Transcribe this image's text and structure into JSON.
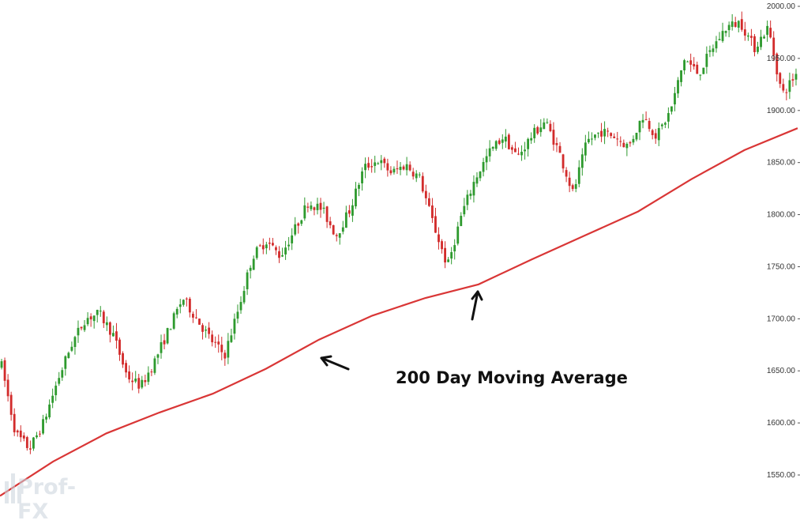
{
  "chart_data": {
    "type": "candlestick",
    "title": "",
    "xlabel": "",
    "ylabel": "",
    "ylim": [
      1530,
      2005
    ],
    "y_ticks": [
      1550,
      1600,
      1650,
      1700,
      1750,
      1800,
      1850,
      1900,
      1950,
      2000
    ],
    "y_tick_labels": [
      "1550.00",
      "1600.00",
      "1650.00",
      "1700.00",
      "1750.00",
      "1800.00",
      "1850.00",
      "1900.00",
      "1950.00",
      "2000.00"
    ],
    "grid": false,
    "series": [
      {
        "kind": "candles",
        "colors": {
          "up": "#2e9a2e",
          "down": "#d22b2b"
        },
        "close_path": [
          1655,
          1590,
          1575,
          1600,
          1640,
          1675,
          1700,
          1705,
          1685,
          1645,
          1635,
          1660,
          1690,
          1720,
          1700,
          1680,
          1665,
          1710,
          1760,
          1775,
          1760,
          1785,
          1812,
          1805,
          1780,
          1805,
          1845,
          1852,
          1840,
          1848,
          1835,
          1790,
          1750,
          1800,
          1835,
          1860,
          1875,
          1855,
          1875,
          1890,
          1860,
          1820,
          1870,
          1880,
          1875,
          1865,
          1895,
          1875,
          1900,
          1950,
          1935,
          1960,
          1980,
          1985,
          1960,
          1980,
          1915,
          1935
        ]
      },
      {
        "kind": "moving-average",
        "color": "#d93636",
        "values": [
          1530,
          1563,
          1590,
          1610,
          1628,
          1652,
          1680,
          1703,
          1720,
          1733,
          1757,
          1780,
          1803,
          1834,
          1862,
          1883
        ]
      }
    ],
    "annotations": [
      {
        "text": "200 Day Moving Average"
      }
    ]
  },
  "watermark": {
    "text": "Prof-FX"
  }
}
